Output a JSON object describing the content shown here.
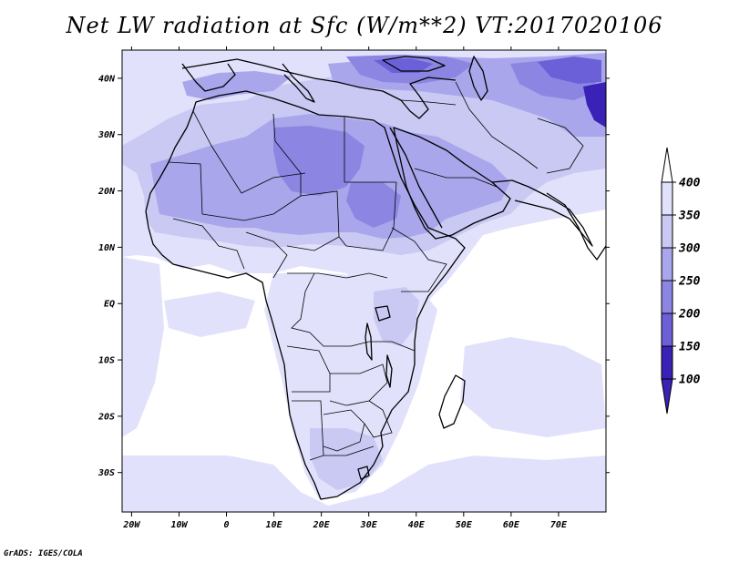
{
  "title": "Net LW radiation at Sfc (W/m**2) VT:2017020106",
  "credit": "GrADS: IGES/COLA",
  "map": {
    "lon_range": [
      -22,
      80
    ],
    "lat_range": [
      -37,
      45
    ],
    "lon_ticks": [
      {
        "value": -20,
        "label": "20W"
      },
      {
        "value": -10,
        "label": "10W"
      },
      {
        "value": 0,
        "label": "0"
      },
      {
        "value": 10,
        "label": "10E"
      },
      {
        "value": 20,
        "label": "20E"
      },
      {
        "value": 30,
        "label": "30E"
      },
      {
        "value": 40,
        "label": "40E"
      },
      {
        "value": 50,
        "label": "50E"
      },
      {
        "value": 60,
        "label": "60E"
      },
      {
        "value": 70,
        "label": "70E"
      }
    ],
    "lat_ticks": [
      {
        "value": 40,
        "label": "40N"
      },
      {
        "value": 30,
        "label": "30N"
      },
      {
        "value": 20,
        "label": "20N"
      },
      {
        "value": 10,
        "label": "10N"
      },
      {
        "value": 0,
        "label": "EQ"
      },
      {
        "value": -10,
        "label": "10S"
      },
      {
        "value": -20,
        "label": "20S"
      },
      {
        "value": -30,
        "label": "30S"
      }
    ],
    "colors": {
      "background": "#ffffff",
      "c350": "#e1e1fb",
      "c300": "#c9c9f3",
      "c250": "#a9a6ec",
      "c200": "#8c86e2",
      "c150": "#6c60d8",
      "c100": "#3a22b6",
      "outline": "#000000"
    }
  },
  "legend": {
    "levels": [
      {
        "label": "400",
        "color": "#ffffff"
      },
      {
        "label": "350",
        "color": "#e1e1fb"
      },
      {
        "label": "300",
        "color": "#c9c9f3"
      },
      {
        "label": "250",
        "color": "#a9a6ec"
      },
      {
        "label": "200",
        "color": "#8c86e2"
      },
      {
        "label": "150",
        "color": "#6c60d8"
      },
      {
        "label": "100",
        "color": "#3a22b6"
      }
    ],
    "arrow_colors": {
      "top": "#ffffff",
      "bottom": "#3a22b6"
    }
  }
}
